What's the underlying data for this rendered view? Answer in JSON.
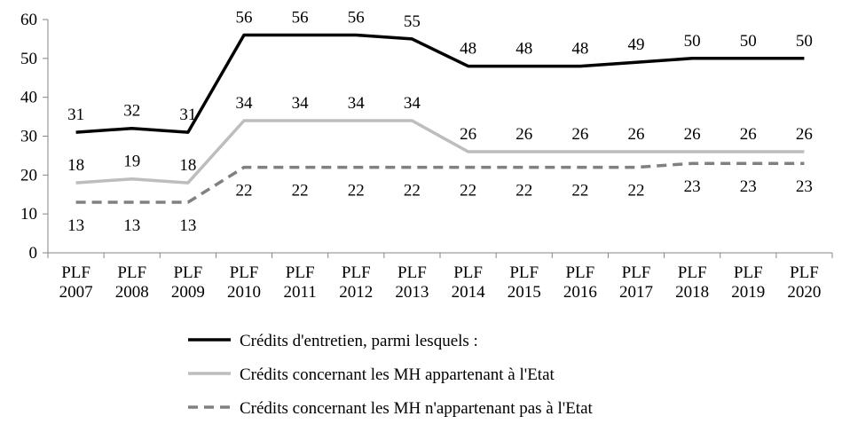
{
  "chart_data": {
    "type": "line",
    "categories": [
      [
        "PLF",
        "2007"
      ],
      [
        "PLF",
        "2008"
      ],
      [
        "PLF",
        "2009"
      ],
      [
        "PLF",
        "2010"
      ],
      [
        "PLF",
        "2011"
      ],
      [
        "PLF",
        "2012"
      ],
      [
        "PLF",
        "2013"
      ],
      [
        "PLF",
        "2014"
      ],
      [
        "PLF",
        "2015"
      ],
      [
        "PLF",
        "2016"
      ],
      [
        "PLF",
        "2017"
      ],
      [
        "PLF",
        "2018"
      ],
      [
        "PLF",
        "2019"
      ],
      [
        "PLF",
        "2020"
      ]
    ],
    "y_ticks": [
      "0",
      "10",
      "20",
      "30",
      "40",
      "50",
      "60"
    ],
    "ylim": [
      0,
      60
    ],
    "grid": false,
    "legend_position": "bottom",
    "series": [
      {
        "name": "Crédits d'entretien, parmi lesquels :",
        "values": [
          31,
          32,
          31,
          56,
          56,
          56,
          55,
          48,
          48,
          48,
          49,
          50,
          50,
          50
        ],
        "color": "#000000",
        "dash": "solid",
        "label_position": "above"
      },
      {
        "name": "Crédits concernant les MH appartenant à l'Etat",
        "values": [
          18,
          19,
          18,
          34,
          34,
          34,
          34,
          26,
          26,
          26,
          26,
          26,
          26,
          26
        ],
        "color": "#bdbdbd",
        "dash": "solid",
        "label_position": "above"
      },
      {
        "name": "Crédits concernant les MH n'appartenant pas à l'Etat",
        "values": [
          13,
          13,
          13,
          22,
          22,
          22,
          22,
          22,
          22,
          22,
          22,
          23,
          23,
          23
        ],
        "color": "#808080",
        "dash": "dashed",
        "label_position": "below"
      }
    ]
  }
}
